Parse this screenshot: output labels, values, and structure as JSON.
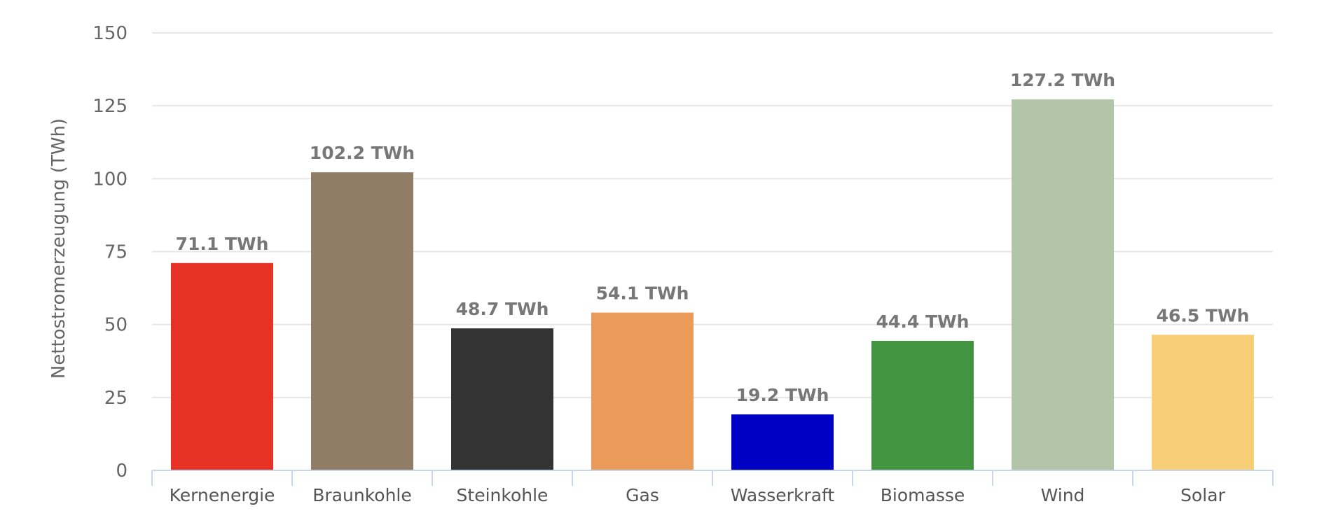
{
  "chart_data": {
    "type": "bar",
    "categories": [
      "Kernenergie",
      "Braunkohle",
      "Steinkohle",
      "Gas",
      "Wasserkraft",
      "Biomasse",
      "Wind",
      "Solar"
    ],
    "values": [
      71.1,
      102.2,
      48.7,
      54.1,
      19.2,
      44.4,
      127.2,
      46.5
    ],
    "data_labels": [
      "71.1 TWh",
      "102.2 TWh",
      "48.7 TWh",
      "54.1 TWh",
      "19.2 TWh",
      "44.4 TWh",
      "127.2 TWh",
      "46.5 TWh"
    ],
    "colors": [
      "#e53224",
      "#917c66",
      "#333333",
      "#ea9b5a",
      "#0000c4",
      "#429441",
      "#b3c5a9",
      "#f6cf76"
    ],
    "ylabel": "Nettostromerzeugung (TWh)",
    "xlabel": "",
    "ylim": [
      0,
      150
    ],
    "yticks": [
      0,
      25,
      50,
      75,
      100,
      125,
      150
    ],
    "grid": true,
    "legend": "none"
  }
}
